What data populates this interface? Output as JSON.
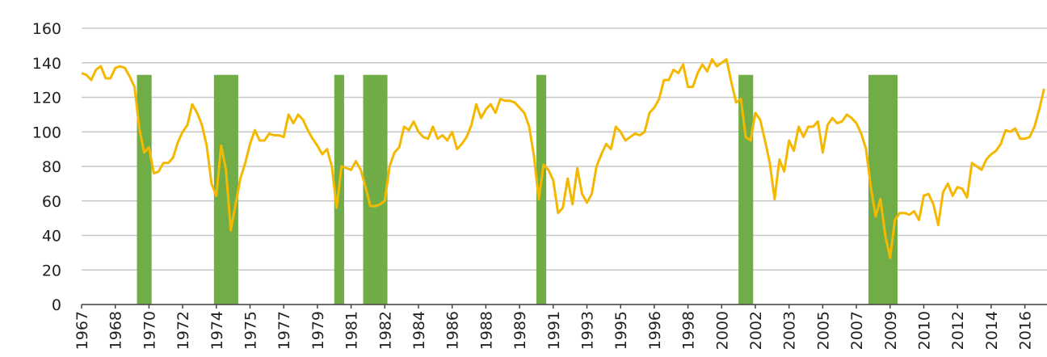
{
  "chart_data": {
    "type": "line",
    "categories": [
      "1967",
      null,
      null,
      null,
      null,
      null,
      null,
      "1968",
      null,
      null,
      null,
      null,
      null,
      null,
      "1970",
      null,
      null,
      null,
      null,
      null,
      null,
      "1972",
      null,
      null,
      null,
      null,
      null,
      null,
      "1974",
      null,
      null,
      null,
      null,
      null,
      null,
      "1975",
      null,
      null,
      null,
      null,
      null,
      null,
      "1977",
      null,
      null,
      null,
      null,
      null,
      null,
      "1979",
      null,
      null,
      null,
      null,
      null,
      null,
      "1981",
      null,
      null,
      null,
      null,
      null,
      null,
      "1982",
      null,
      null,
      null,
      null,
      null,
      null,
      "1984",
      null,
      null,
      null,
      null,
      null,
      null,
      "1986",
      null,
      null,
      null,
      null,
      null,
      null,
      "1988",
      null,
      null,
      null,
      null,
      null,
      null,
      "1989",
      null,
      null,
      null,
      null,
      null,
      null,
      "1991",
      null,
      null,
      null,
      null,
      null,
      null,
      "1993",
      null,
      null,
      null,
      null,
      null,
      null,
      "1995",
      null,
      null,
      null,
      null,
      null,
      null,
      "1996",
      null,
      null,
      null,
      null,
      null,
      null,
      "1998",
      null,
      null,
      null,
      null,
      null,
      null,
      "2000",
      null,
      null,
      null,
      null,
      null,
      null,
      "2002",
      null,
      null,
      null,
      null,
      null,
      null,
      "2003",
      null,
      null,
      null,
      null,
      null,
      null,
      "2005",
      null,
      null,
      null,
      null,
      null,
      null,
      "2007",
      null,
      null,
      null,
      null,
      null,
      null,
      "2009",
      null,
      null,
      null,
      null,
      null,
      null,
      "2010",
      null,
      null,
      null,
      null,
      null,
      null,
      "2012",
      null,
      null,
      null,
      null,
      null,
      null,
      "2014",
      null,
      null,
      null,
      null,
      null,
      null,
      "2016",
      null,
      null,
      null,
      null
    ],
    "series": [
      {
        "type": "line",
        "color": "#f5b800",
        "values": [
          134,
          133,
          130,
          136,
          138,
          131,
          131,
          137,
          138,
          137,
          132,
          126,
          102,
          88,
          91,
          76,
          77,
          82,
          82,
          85,
          94,
          100,
          104,
          116,
          111,
          104,
          92,
          70,
          63,
          92,
          78,
          43,
          58,
          73,
          82,
          93,
          101,
          95,
          95,
          99,
          98,
          98,
          97,
          110,
          105,
          110,
          107,
          101,
          96,
          92,
          87,
          90,
          80,
          56,
          80,
          79,
          78,
          83,
          78,
          68,
          57,
          57,
          58,
          60,
          80,
          88,
          91,
          103,
          101,
          106,
          100,
          97,
          96,
          103,
          96,
          98,
          95,
          100,
          90,
          93,
          97,
          104,
          116,
          108,
          113,
          116,
          111,
          119,
          118,
          118,
          117,
          114,
          111,
          103,
          86,
          61,
          81,
          78,
          72,
          53,
          56,
          73,
          58,
          79,
          64,
          59,
          64,
          80,
          87,
          93,
          90,
          103,
          100,
          95,
          97,
          99,
          98,
          100,
          111,
          114,
          119,
          130,
          130,
          136,
          134,
          139,
          126,
          126,
          134,
          139,
          135,
          142,
          138,
          140,
          142,
          129,
          117,
          119,
          97,
          95,
          111,
          107,
          95,
          82,
          61,
          84,
          77,
          95,
          89,
          103,
          97,
          103,
          103,
          106,
          88,
          104,
          108,
          105,
          106,
          110,
          108,
          105,
          99,
          90,
          68,
          51,
          61,
          40,
          27,
          49,
          53,
          53,
          52,
          54,
          49,
          63,
          64,
          58,
          46,
          65,
          70,
          63,
          68,
          67,
          62,
          82,
          80,
          78,
          84,
          87,
          89,
          93,
          101,
          100,
          102,
          96,
          96,
          97,
          103,
          113,
          125
        ]
      },
      {
        "type": "bar",
        "color": "#70ad47",
        "values": [
          null,
          null,
          null,
          null,
          null,
          null,
          null,
          null,
          null,
          null,
          null,
          null,
          133,
          133,
          133,
          null,
          null,
          null,
          null,
          null,
          null,
          null,
          null,
          null,
          null,
          null,
          null,
          null,
          133,
          133,
          133,
          133,
          133,
          null,
          null,
          null,
          null,
          null,
          null,
          null,
          null,
          null,
          null,
          null,
          null,
          null,
          null,
          null,
          null,
          null,
          null,
          null,
          null,
          133,
          133,
          null,
          null,
          null,
          null,
          133,
          133,
          133,
          133,
          133,
          null,
          null,
          null,
          null,
          null,
          null,
          null,
          null,
          null,
          null,
          null,
          null,
          null,
          null,
          null,
          null,
          null,
          null,
          null,
          null,
          null,
          null,
          null,
          null,
          null,
          null,
          null,
          null,
          null,
          null,
          null,
          133,
          133,
          null,
          null,
          null,
          null,
          null,
          null,
          null,
          null,
          null,
          null,
          null,
          null,
          null,
          null,
          null,
          null,
          null,
          null,
          null,
          null,
          null,
          null,
          null,
          null,
          null,
          null,
          null,
          null,
          null,
          null,
          null,
          null,
          null,
          null,
          null,
          null,
          null,
          null,
          null,
          null,
          133,
          133,
          133,
          null,
          null,
          null,
          null,
          null,
          null,
          null,
          null,
          null,
          null,
          null,
          null,
          null,
          null,
          null,
          null,
          null,
          null,
          null,
          null,
          null,
          null,
          null,
          null,
          133,
          133,
          133,
          133,
          133,
          133,
          null,
          null,
          null,
          null,
          null,
          null,
          null,
          null,
          null,
          null,
          null,
          null,
          null,
          null,
          null,
          null,
          null,
          null,
          null,
          null,
          null,
          null,
          null,
          null,
          null,
          null,
          null,
          null,
          null,
          null,
          null
        ]
      }
    ],
    "ylim": [
      0,
      160
    ],
    "yticks": [
      0,
      20,
      40,
      60,
      80,
      100,
      120,
      140,
      160
    ],
    "grid": true
  }
}
